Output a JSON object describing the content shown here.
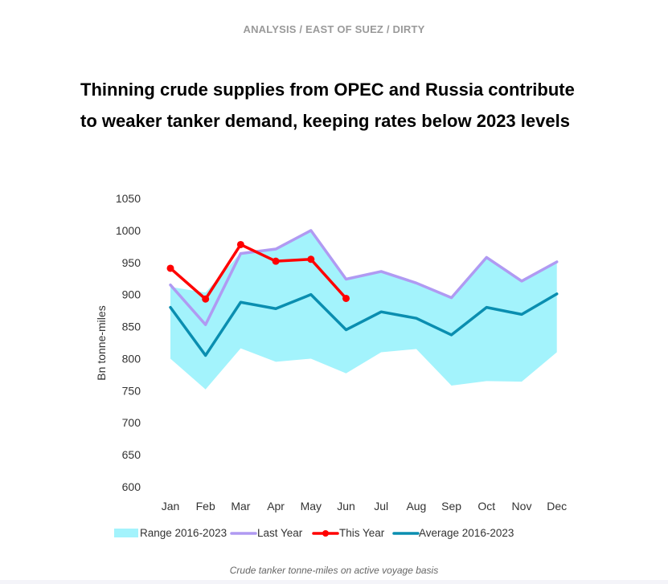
{
  "header": {
    "breadcrumb": "ANALYSIS / EAST OF SUEZ / DIRTY"
  },
  "title": "Thinning crude supplies from OPEC and Russia contribute to weaker tanker demand, keeping rates below 2023 levels",
  "caption": "Crude tanker tonne-miles on active voyage basis",
  "colors": {
    "range": "#a3f3fc",
    "last_year": "#b09af2",
    "this_year": "#ff0000",
    "average": "#0a8eb0"
  },
  "chart_data": {
    "type": "line",
    "title": "",
    "xlabel": "",
    "ylabel": "Bn tonne-miles",
    "ylim": [
      600,
      1050
    ],
    "yticks": [
      "600",
      "650",
      "700",
      "750",
      "800",
      "850",
      "900",
      "950",
      "1000",
      "1050"
    ],
    "categories": [
      "Jan",
      "Feb",
      "Mar",
      "Apr",
      "May",
      "Jun",
      "Jul",
      "Aug",
      "Sep",
      "Oct",
      "Nov",
      "Dec"
    ],
    "grid": false,
    "legend_position": "bottom",
    "range": {
      "name": "Range 2016-2023",
      "min": [
        800,
        752,
        816,
        795,
        800,
        777,
        810,
        815,
        758,
        765,
        764,
        810
      ],
      "max": [
        912,
        903,
        965,
        971,
        1000,
        925,
        936,
        918,
        895,
        958,
        921,
        950
      ]
    },
    "series": [
      {
        "name": "Last Year",
        "values": [
          915,
          853,
          964,
          971,
          1000,
          924,
          936,
          918,
          895,
          958,
          921,
          951
        ]
      },
      {
        "name": "This Year",
        "values": [
          941,
          893,
          978,
          952,
          955,
          894,
          null,
          null,
          null,
          null,
          null,
          null
        ],
        "markers": true
      },
      {
        "name": "Average 2016-2023",
        "values": [
          880,
          805,
          888,
          878,
          900,
          845,
          873,
          863,
          837,
          880,
          869,
          901
        ]
      }
    ]
  }
}
